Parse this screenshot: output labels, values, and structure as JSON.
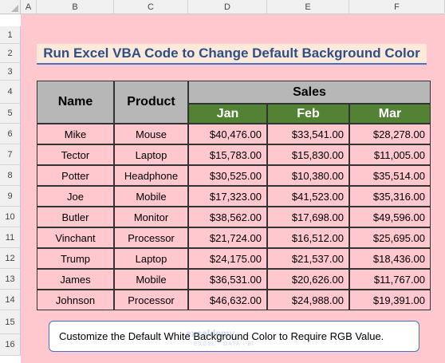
{
  "columns": [
    "A",
    "B",
    "C",
    "D",
    "E",
    "F"
  ],
  "rows": [
    "1",
    "2",
    "3",
    "4",
    "5",
    "6",
    "7",
    "8",
    "9",
    "10",
    "11",
    "12",
    "13",
    "14",
    "15",
    "16"
  ],
  "title": "Run Excel VBA Code to Change Default Background Color",
  "headers": {
    "name": "Name",
    "product": "Product",
    "sales": "Sales",
    "months": [
      "Jan",
      "Feb",
      "Mar"
    ]
  },
  "records": [
    {
      "name": "Mike",
      "product": "Mouse",
      "jan": "$40,476.00",
      "feb": "$33,541.00",
      "mar": "$28,278.00"
    },
    {
      "name": "Tector",
      "product": "Laptop",
      "jan": "$15,783.00",
      "feb": "$15,830.00",
      "mar": "$11,005.00"
    },
    {
      "name": "Potter",
      "product": "Headphone",
      "jan": "$30,525.00",
      "feb": "$10,380.00",
      "mar": "$35,514.00"
    },
    {
      "name": "Joe",
      "product": "Mobile",
      "jan": "$17,323.00",
      "feb": "$41,523.00",
      "mar": "$35,316.00"
    },
    {
      "name": "Butler",
      "product": "Monitor",
      "jan": "$38,562.00",
      "feb": "$17,698.00",
      "mar": "$49,596.00"
    },
    {
      "name": "Vinchant",
      "product": "Processor",
      "jan": "$21,724.00",
      "feb": "$16,512.00",
      "mar": "$25,695.00"
    },
    {
      "name": "Trump",
      "product": "Laptop",
      "jan": "$24,175.00",
      "feb": "$21,537.00",
      "mar": "$18,436.00"
    },
    {
      "name": "James",
      "product": "Mobile",
      "jan": "$36,531.00",
      "feb": "$20,626.00",
      "mar": "$11,767.00"
    },
    {
      "name": "Johnson",
      "product": "Processor",
      "jan": "$46,632.00",
      "feb": "$24,988.00",
      "mar": "$19,391.00"
    }
  ],
  "note": "Customize the Default White Background Color to Require RGB Value.",
  "watermark": {
    "name": "exceldemy",
    "tagline": "EXCEL · DATA · BI"
  },
  "colors": {
    "sheet_background": "#ffc7ce",
    "header_fill": "#b7b7b7",
    "month_fill": "#548235",
    "title_fill": "#fde9d9"
  }
}
